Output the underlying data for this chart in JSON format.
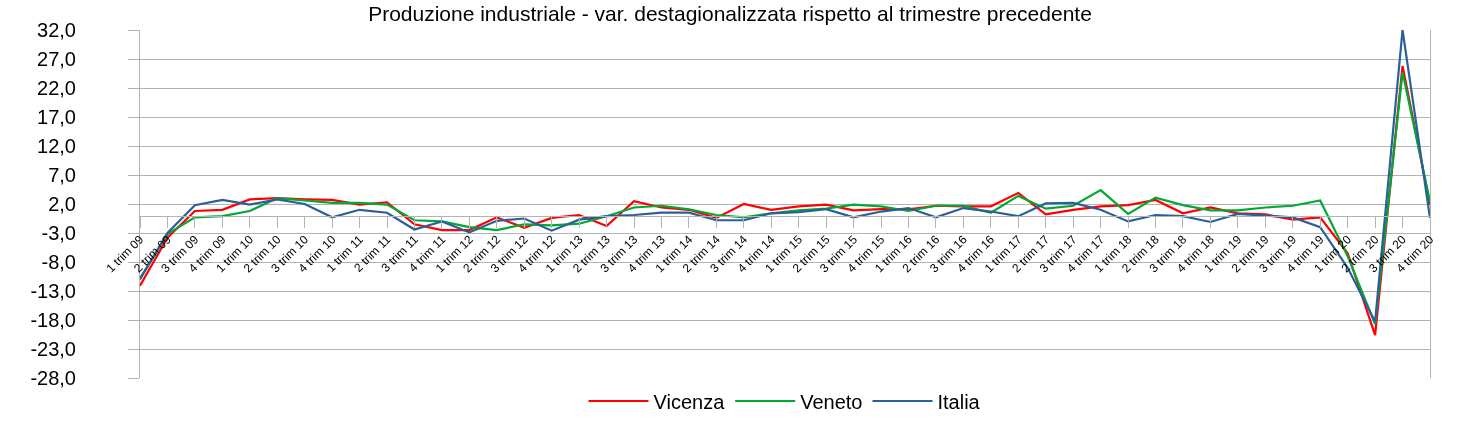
{
  "chart_data": {
    "type": "line",
    "title": "Produzione industriale - var. destagionalizzata rispetto al trimestre precedente",
    "categories": [
      "1 trim 09",
      "2 trim 09",
      "3 trim 09",
      "4 trim 09",
      "1 trim 10",
      "2 trim 10",
      "3 trim 10",
      "4 trim 10",
      "1 trim 11",
      "2 trim 11",
      "3 trim 11",
      "4 trim 11",
      "1 trim 12",
      "2 trim 12",
      "3 trim 12",
      "4 trim 12",
      "1 trim 13",
      "2 trim 13",
      "3 trim 13",
      "4 trim 13",
      "1 trim 14",
      "2 trim 14",
      "3 trim 14",
      "4 trim 14",
      "1 trim 15",
      "2 trim 15",
      "3 trim 15",
      "4 trim 15",
      "1 trim 16",
      "2 trim 16",
      "3 trim 16",
      "4 trim 16",
      "1 trim 17",
      "2 trim 17",
      "3 trim 17",
      "4 trim 17",
      "1 trim 18",
      "2 trim 18",
      "3 trim 18",
      "4 trim 18",
      "1 trim 19",
      "2 trim 19",
      "3 trim 19",
      "4 trim 19",
      "1 trim 20",
      "2 trim 20",
      "3 trim 20",
      "4 trim 20"
    ],
    "series": [
      {
        "name": "Vicenza",
        "color": "#ff0000",
        "values": [
          -12.1,
          -3.8,
          0.8,
          1.0,
          2.8,
          3.0,
          2.8,
          2.7,
          1.9,
          2.3,
          -1.5,
          -2.5,
          -2.5,
          -0.3,
          -2.1,
          -0.4,
          0.1,
          -1.8,
          2.5,
          1.4,
          1.0,
          -0.4,
          2.0,
          1.0,
          1.6,
          1.9,
          0.9,
          1.1,
          1.1,
          1.7,
          1.6,
          1.6,
          3.9,
          0.2,
          1.0,
          1.6,
          1.8,
          2.7,
          0.4,
          1.4,
          0.4,
          0.2,
          -0.7,
          -0.3,
          -6.5,
          -20.6,
          25.8,
          1.9
        ]
      },
      {
        "name": "Veneto",
        "color": "#00a933",
        "values": [
          -10.8,
          -3.2,
          -0.3,
          -0.1,
          0.8,
          3.0,
          2.6,
          2.2,
          2.2,
          1.9,
          -0.8,
          -1.0,
          -2.0,
          -2.5,
          -1.5,
          -1.7,
          -1.4,
          -0.1,
          1.4,
          1.7,
          1.1,
          0.1,
          -0.3,
          0.4,
          0.9,
          1.2,
          1.9,
          1.6,
          0.8,
          1.7,
          1.7,
          0.5,
          3.4,
          1.2,
          1.7,
          4.4,
          0.3,
          3.1,
          1.8,
          0.9,
          0.9,
          1.4,
          1.7,
          2.6,
          -7.0,
          -18.7,
          24.7,
          2.4
        ]
      },
      {
        "name": "Italia",
        "color": "#2a6099",
        "values": [
          -11.0,
          -3.0,
          1.8,
          2.7,
          1.9,
          2.8,
          2.0,
          -0.3,
          1.0,
          0.5,
          -2.4,
          -1.0,
          -2.9,
          -0.9,
          -0.5,
          -2.6,
          -0.7,
          -0.1,
          0.1,
          0.5,
          0.5,
          -0.8,
          -0.8,
          0.4,
          0.6,
          1.1,
          -0.3,
          0.7,
          1.3,
          -0.3,
          1.3,
          0.7,
          -0.1,
          2.1,
          2.2,
          1.0,
          -1.0,
          0.1,
          -0.1,
          -1.1,
          0.3,
          0.0,
          -0.3,
          -2.0,
          -9.0,
          -18.3,
          32.0,
          -0.4
        ]
      }
    ],
    "ylim": [
      -28,
      32
    ],
    "yticks": [
      {
        "value": -28,
        "label": "-28,0"
      },
      {
        "value": -23,
        "label": "-23,0"
      },
      {
        "value": -18,
        "label": "-18,0"
      },
      {
        "value": -13,
        "label": "-13,0"
      },
      {
        "value": -8,
        "label": "-8,0"
      },
      {
        "value": -3,
        "label": "-3,0"
      },
      {
        "value": 2,
        "label": "2,0"
      },
      {
        "value": 7,
        "label": "7,0"
      },
      {
        "value": 12,
        "label": "12,0"
      },
      {
        "value": 17,
        "label": "17,0"
      },
      {
        "value": 22,
        "label": "22,0"
      },
      {
        "value": 27,
        "label": "27,0"
      },
      {
        "value": 32,
        "label": "32,0"
      }
    ],
    "grid": "y",
    "legend": "bottom"
  }
}
